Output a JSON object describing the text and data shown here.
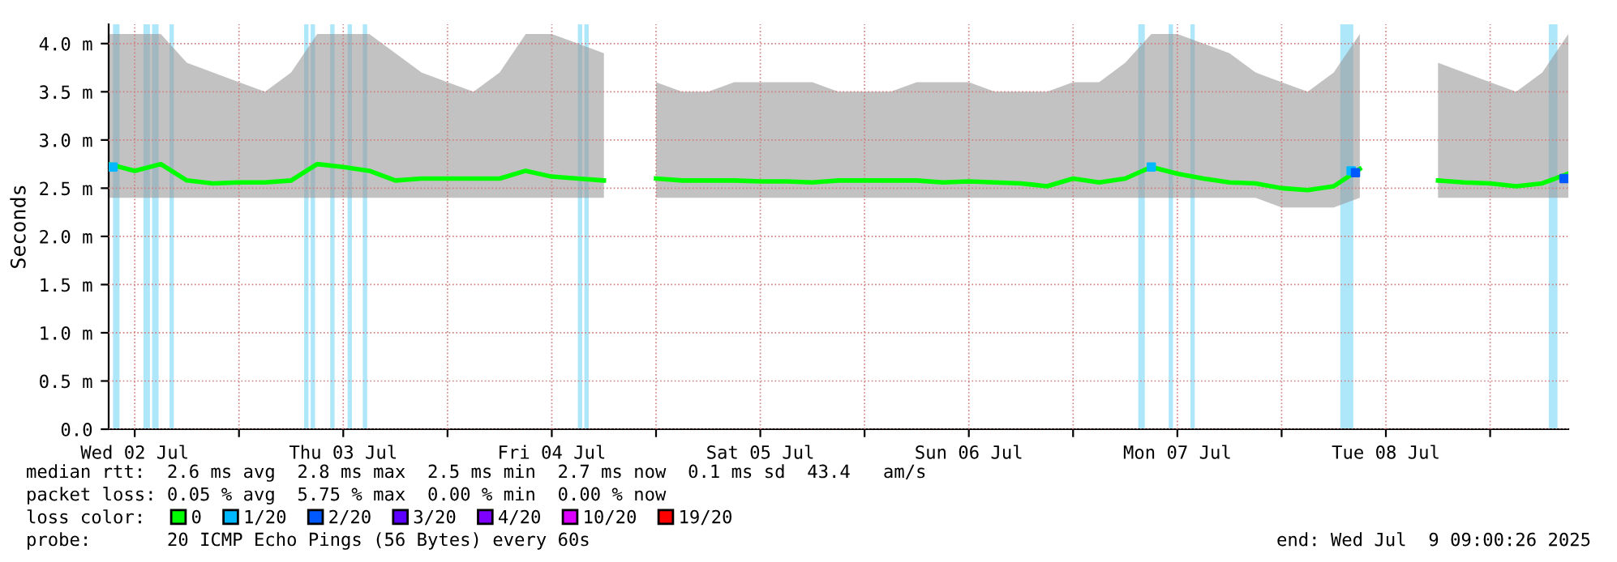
{
  "chart_data": {
    "type": "line",
    "ylabel": "Seconds",
    "x": [
      "2025-07-02T09:00",
      "2025-07-02T12:00",
      "2025-07-02T15:00",
      "2025-07-02T18:00",
      "2025-07-02T21:00",
      "2025-07-03T00:00",
      "2025-07-03T03:00",
      "2025-07-03T06:00",
      "2025-07-03T09:00",
      "2025-07-03T12:00",
      "2025-07-03T15:00",
      "2025-07-03T18:00",
      "2025-07-03T21:00",
      "2025-07-04T00:00",
      "2025-07-04T03:00",
      "2025-07-04T06:00",
      "2025-07-04T09:00",
      "2025-07-04T12:00",
      "2025-07-04T15:00",
      "2025-07-04T18:00",
      "2025-07-04T21:00",
      "2025-07-05T00:00",
      "2025-07-05T03:00",
      "2025-07-05T06:00",
      "2025-07-05T09:00",
      "2025-07-05T12:00",
      "2025-07-05T15:00",
      "2025-07-05T18:00",
      "2025-07-05T21:00",
      "2025-07-06T00:00",
      "2025-07-06T03:00",
      "2025-07-06T06:00",
      "2025-07-06T09:00",
      "2025-07-06T12:00",
      "2025-07-06T15:00",
      "2025-07-06T18:00",
      "2025-07-06T21:00",
      "2025-07-07T00:00",
      "2025-07-07T03:00",
      "2025-07-07T06:00",
      "2025-07-07T09:00",
      "2025-07-07T12:00",
      "2025-07-07T15:00",
      "2025-07-07T18:00",
      "2025-07-07T21:00",
      "2025-07-08T00:00",
      "2025-07-08T03:00",
      "2025-07-08T06:00",
      "2025-07-08T09:00",
      "2025-07-08T12:00",
      "2025-07-08T15:00",
      "2025-07-08T18:00",
      "2025-07-08T21:00",
      "2025-07-09T00:00",
      "2025-07-09T03:00",
      "2025-07-09T06:00",
      "2025-07-09T09:00"
    ],
    "series": [
      {
        "name": "0",
        "type": "line",
        "color": "#00ff00",
        "values": [
          2.75,
          2.68,
          2.75,
          2.58,
          2.55,
          2.56,
          2.56,
          2.58,
          2.75,
          2.72,
          2.68,
          2.58,
          2.6,
          2.6,
          2.6,
          2.6,
          2.68,
          2.62,
          2.6,
          2.58,
          null,
          2.6,
          2.58,
          2.58,
          2.58,
          2.57,
          2.57,
          2.56,
          2.58,
          2.58,
          2.58,
          2.58,
          2.56,
          2.57,
          2.56,
          2.55,
          2.52,
          2.6,
          2.56,
          2.6,
          2.72,
          2.65,
          2.6,
          2.56,
          2.55,
          2.5,
          2.48,
          2.52,
          2.7,
          null,
          null,
          2.58,
          2.56,
          2.55,
          2.52,
          2.55,
          2.65
        ],
        "lower": [
          2.4,
          2.4,
          2.4,
          2.4,
          2.4,
          2.4,
          2.4,
          2.4,
          2.4,
          2.4,
          2.4,
          2.4,
          2.4,
          2.4,
          2.4,
          2.4,
          2.4,
          2.4,
          2.4,
          2.4,
          null,
          2.4,
          2.4,
          2.4,
          2.4,
          2.4,
          2.4,
          2.4,
          2.4,
          2.4,
          2.4,
          2.4,
          2.4,
          2.4,
          2.4,
          2.4,
          2.4,
          2.4,
          2.4,
          2.4,
          2.4,
          2.4,
          2.4,
          2.4,
          2.4,
          2.3,
          2.3,
          2.3,
          2.4,
          null,
          null,
          2.4,
          2.4,
          2.4,
          2.4,
          2.4,
          2.4
        ],
        "upper": [
          4.1,
          4.1,
          4.1,
          3.8,
          3.7,
          3.6,
          3.5,
          3.7,
          4.1,
          4.1,
          4.1,
          3.9,
          3.7,
          3.6,
          3.5,
          3.7,
          4.1,
          4.1,
          4.0,
          3.9,
          null,
          3.6,
          3.5,
          3.5,
          3.6,
          3.6,
          3.6,
          3.6,
          3.5,
          3.5,
          3.5,
          3.6,
          3.6,
          3.6,
          3.5,
          3.5,
          3.5,
          3.6,
          3.6,
          3.8,
          4.1,
          4.1,
          4.0,
          3.9,
          3.7,
          3.6,
          3.5,
          3.7,
          4.1,
          null,
          null,
          3.8,
          3.7,
          3.6,
          3.5,
          3.7,
          4.1
        ]
      },
      {
        "name": "1/20",
        "type": "scatter",
        "marker": "square",
        "color": "#00b8ff",
        "x": [
          "2025-07-02T09:30",
          "2025-07-07T09:00",
          "2025-07-08T08:00"
        ],
        "values": [
          2.72,
          2.72,
          2.68
        ]
      },
      {
        "name": "2/20",
        "type": "scatter",
        "marker": "square",
        "color": "#0059ff",
        "x": [
          "2025-07-08T08:30",
          "2025-07-09T08:30"
        ],
        "values": [
          2.66,
          2.6
        ]
      },
      {
        "name": "3/20",
        "type": "scatter",
        "marker": "square",
        "color": "#5e00ff",
        "values": [
          null,
          null,
          null,
          null,
          null,
          null,
          null,
          null,
          null,
          null,
          null,
          null,
          null,
          null,
          null,
          null,
          null,
          null,
          null,
          null,
          null,
          null,
          null,
          null,
          null,
          null,
          null,
          null,
          null,
          null,
          null,
          null,
          null,
          null,
          null,
          null,
          null,
          null,
          null,
          null,
          null,
          null,
          null,
          null,
          null,
          null,
          null,
          null,
          null,
          null,
          null,
          null,
          null,
          null,
          null,
          null,
          null
        ]
      },
      {
        "name": "4/20",
        "type": "scatter",
        "marker": "square",
        "color": "#7e00ff",
        "values": [
          null,
          null,
          null,
          null,
          null,
          null,
          null,
          null,
          null,
          null,
          null,
          null,
          null,
          null,
          null,
          null,
          null,
          null,
          null,
          null,
          null,
          null,
          null,
          null,
          null,
          null,
          null,
          null,
          null,
          null,
          null,
          null,
          null,
          null,
          null,
          null,
          null,
          null,
          null,
          null,
          null,
          null,
          null,
          null,
          null,
          null,
          null,
          null,
          null,
          null,
          null,
          null,
          null,
          null,
          null,
          null,
          null
        ]
      },
      {
        "name": "10/20",
        "type": "scatter",
        "marker": "square",
        "color": "#dd00ff",
        "values": [
          null,
          null,
          null,
          null,
          null,
          null,
          null,
          null,
          null,
          null,
          null,
          null,
          null,
          null,
          null,
          null,
          null,
          null,
          null,
          null,
          null,
          null,
          null,
          null,
          null,
          null,
          null,
          null,
          null,
          null,
          null,
          null,
          null,
          null,
          null,
          null,
          null,
          null,
          null,
          null,
          null,
          null,
          null,
          null,
          null,
          null,
          null,
          null,
          null,
          null,
          null,
          null,
          null,
          null,
          null,
          null,
          null
        ]
      },
      {
        "name": "19/20",
        "type": "scatter",
        "marker": "square",
        "color": "#ff0000",
        "values": [
          null,
          null,
          null,
          null,
          null,
          null,
          null,
          null,
          null,
          null,
          null,
          null,
          null,
          null,
          null,
          null,
          null,
          null,
          null,
          null,
          null,
          null,
          null,
          null,
          null,
          null,
          null,
          null,
          null,
          null,
          null,
          null,
          null,
          null,
          null,
          null,
          null,
          null,
          null,
          null,
          null,
          null,
          null,
          null,
          null,
          null,
          null,
          null,
          null,
          null,
          null,
          null,
          null,
          null,
          null,
          null,
          null
        ]
      }
    ],
    "xlim": [
      "2025-07-02T09:00",
      "2025-07-09T09:00"
    ],
    "xticks": [
      {
        "value": "2025-07-02T12:00",
        "label": "Wed 02 Jul"
      },
      {
        "value": "2025-07-03T00:00",
        "label": null
      },
      {
        "value": "2025-07-03T12:00",
        "label": "Thu 03 Jul"
      },
      {
        "value": "2025-07-04T00:00",
        "label": null
      },
      {
        "value": "2025-07-04T12:00",
        "label": "Fri 04 Jul"
      },
      {
        "value": "2025-07-05T00:00",
        "label": null
      },
      {
        "value": "2025-07-05T12:00",
        "label": "Sat 05 Jul"
      },
      {
        "value": "2025-07-06T00:00",
        "label": null
      },
      {
        "value": "2025-07-06T12:00",
        "label": "Sun 06 Jul"
      },
      {
        "value": "2025-07-07T00:00",
        "label": null
      },
      {
        "value": "2025-07-07T12:00",
        "label": "Mon 07 Jul"
      },
      {
        "value": "2025-07-08T00:00",
        "label": null
      },
      {
        "value": "2025-07-08T12:00",
        "label": "Tue 08 Jul"
      },
      {
        "value": "2025-07-09T00:00",
        "label": null
      }
    ],
    "ylim": [
      0,
      4.2
    ],
    "yticks": [
      {
        "value": 0,
        "label": "0.0"
      },
      {
        "value": 0.5,
        "label": "0.5 m"
      },
      {
        "value": 1,
        "label": "1.0 m"
      },
      {
        "value": 1.5,
        "label": "1.5 m"
      },
      {
        "value": 2,
        "label": "2.0 m"
      },
      {
        "value": 2.5,
        "label": "2.5 m"
      },
      {
        "value": 3,
        "label": "3.0 m"
      },
      {
        "value": 3.5,
        "label": "3.5 m"
      },
      {
        "value": 4,
        "label": "4.0 m"
      }
    ],
    "bands": [
      {
        "axis": "x",
        "from": "2025-07-02T09:30",
        "to": "2025-07-02T10:15",
        "color": "#aee6fa"
      },
      {
        "axis": "x",
        "from": "2025-07-02T13:00",
        "to": "2025-07-02T13:45",
        "color": "#aee6fa"
      },
      {
        "axis": "x",
        "from": "2025-07-02T14:00",
        "to": "2025-07-02T14:45",
        "color": "#aee6fa"
      },
      {
        "axis": "x",
        "from": "2025-07-02T16:00",
        "to": "2025-07-02T16:30",
        "color": "#aee6fa"
      },
      {
        "axis": "x",
        "from": "2025-07-03T07:30",
        "to": "2025-07-03T08:00",
        "color": "#aee6fa"
      },
      {
        "axis": "x",
        "from": "2025-07-03T08:15",
        "to": "2025-07-03T08:45",
        "color": "#aee6fa"
      },
      {
        "axis": "x",
        "from": "2025-07-03T10:30",
        "to": "2025-07-03T11:00",
        "color": "#aee6fa"
      },
      {
        "axis": "x",
        "from": "2025-07-03T12:30",
        "to": "2025-07-03T13:00",
        "color": "#aee6fa"
      },
      {
        "axis": "x",
        "from": "2025-07-03T14:15",
        "to": "2025-07-03T14:45",
        "color": "#aee6fa"
      },
      {
        "axis": "x",
        "from": "2025-07-04T15:00",
        "to": "2025-07-04T15:30",
        "color": "#aee6fa"
      },
      {
        "axis": "x",
        "from": "2025-07-04T15:45",
        "to": "2025-07-04T16:15",
        "color": "#aee6fa"
      },
      {
        "axis": "x",
        "from": "2025-07-07T07:30",
        "to": "2025-07-07T08:15",
        "color": "#aee6fa"
      },
      {
        "axis": "x",
        "from": "2025-07-07T11:00",
        "to": "2025-07-07T11:30",
        "color": "#aee6fa"
      },
      {
        "axis": "x",
        "from": "2025-07-07T13:30",
        "to": "2025-07-07T14:00",
        "color": "#aee6fa"
      },
      {
        "axis": "x",
        "from": "2025-07-08T06:45",
        "to": "2025-07-08T08:15",
        "color": "#aee6fa"
      },
      {
        "axis": "x",
        "from": "2025-07-09T06:45",
        "to": "2025-07-09T07:45",
        "color": "#aee6fa"
      }
    ],
    "legend": "bottom",
    "legend_title": "loss color:",
    "grid": true,
    "annotations": [
      "median rtt:  2.6 ms avg  2.8 ms max  2.5 ms min  2.7 ms now  0.1 ms sd  43.4   am/s",
      "packet loss: 0.05 % avg  5.75 % max  0.00 % min  0.00 % now",
      "probe:       20 ICMP Echo Pings (56 Bytes) every 60s",
      "end: Wed Jul  9 09:00:26 2025"
    ]
  }
}
